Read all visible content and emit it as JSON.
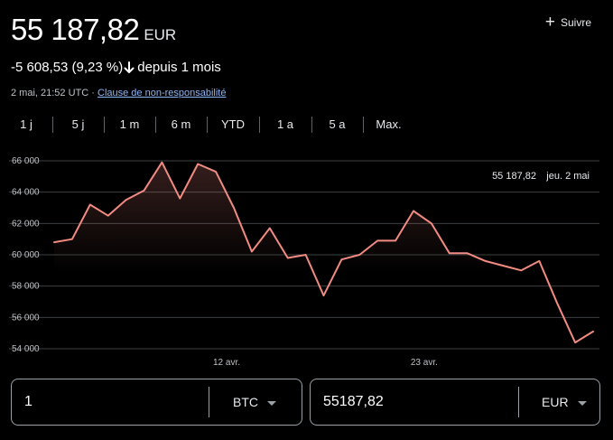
{
  "header": {
    "price": "55 187,82",
    "currency": "EUR",
    "follow_label": "Suivre"
  },
  "change": {
    "text": "-5 608,53 (9,23 %)",
    "direction": "down",
    "period": "depuis 1 mois"
  },
  "meta": {
    "timestamp": "2 mai, 21:52 UTC",
    "separator": "·",
    "disclaimer": "Clause de non-responsabilité"
  },
  "ranges": [
    "1 j",
    "5 j",
    "1 m",
    "6 m",
    "YTD",
    "1 a",
    "5 a",
    "Max."
  ],
  "selected_range": "1 m",
  "tooltip": {
    "value": "55 187,82",
    "date": "jeu. 2 mai"
  },
  "colors": {
    "line": "#f28b82",
    "grid": "#3c4043",
    "tick": "#bdc1c6"
  },
  "chart_data": {
    "type": "line",
    "ylim": [
      53500,
      66500
    ],
    "y_ticks": [
      54000,
      56000,
      58000,
      60000,
      62000,
      64000,
      66000
    ],
    "y_tick_labels": [
      "54 000",
      "56 000",
      "58 000",
      "60 000",
      "62 000",
      "64 000",
      "66 000"
    ],
    "x_labels": [
      {
        "label": "12 avr.",
        "index": 10
      },
      {
        "label": "23 avr.",
        "index": 21
      }
    ],
    "values": [
      60800,
      61000,
      63200,
      62500,
      63500,
      64100,
      65900,
      63600,
      65800,
      65300,
      63000,
      60200,
      61700,
      59800,
      60000,
      57400,
      59700,
      60000,
      60900,
      60900,
      62800,
      62000,
      60100,
      60100,
      59600,
      59300,
      59000,
      59600,
      56900,
      54400,
      55100
    ],
    "fill_under": true,
    "grid": true
  },
  "converter": {
    "from_amount": "1",
    "from_unit": "BTC",
    "to_amount": "55187,82",
    "to_unit": "EUR"
  }
}
